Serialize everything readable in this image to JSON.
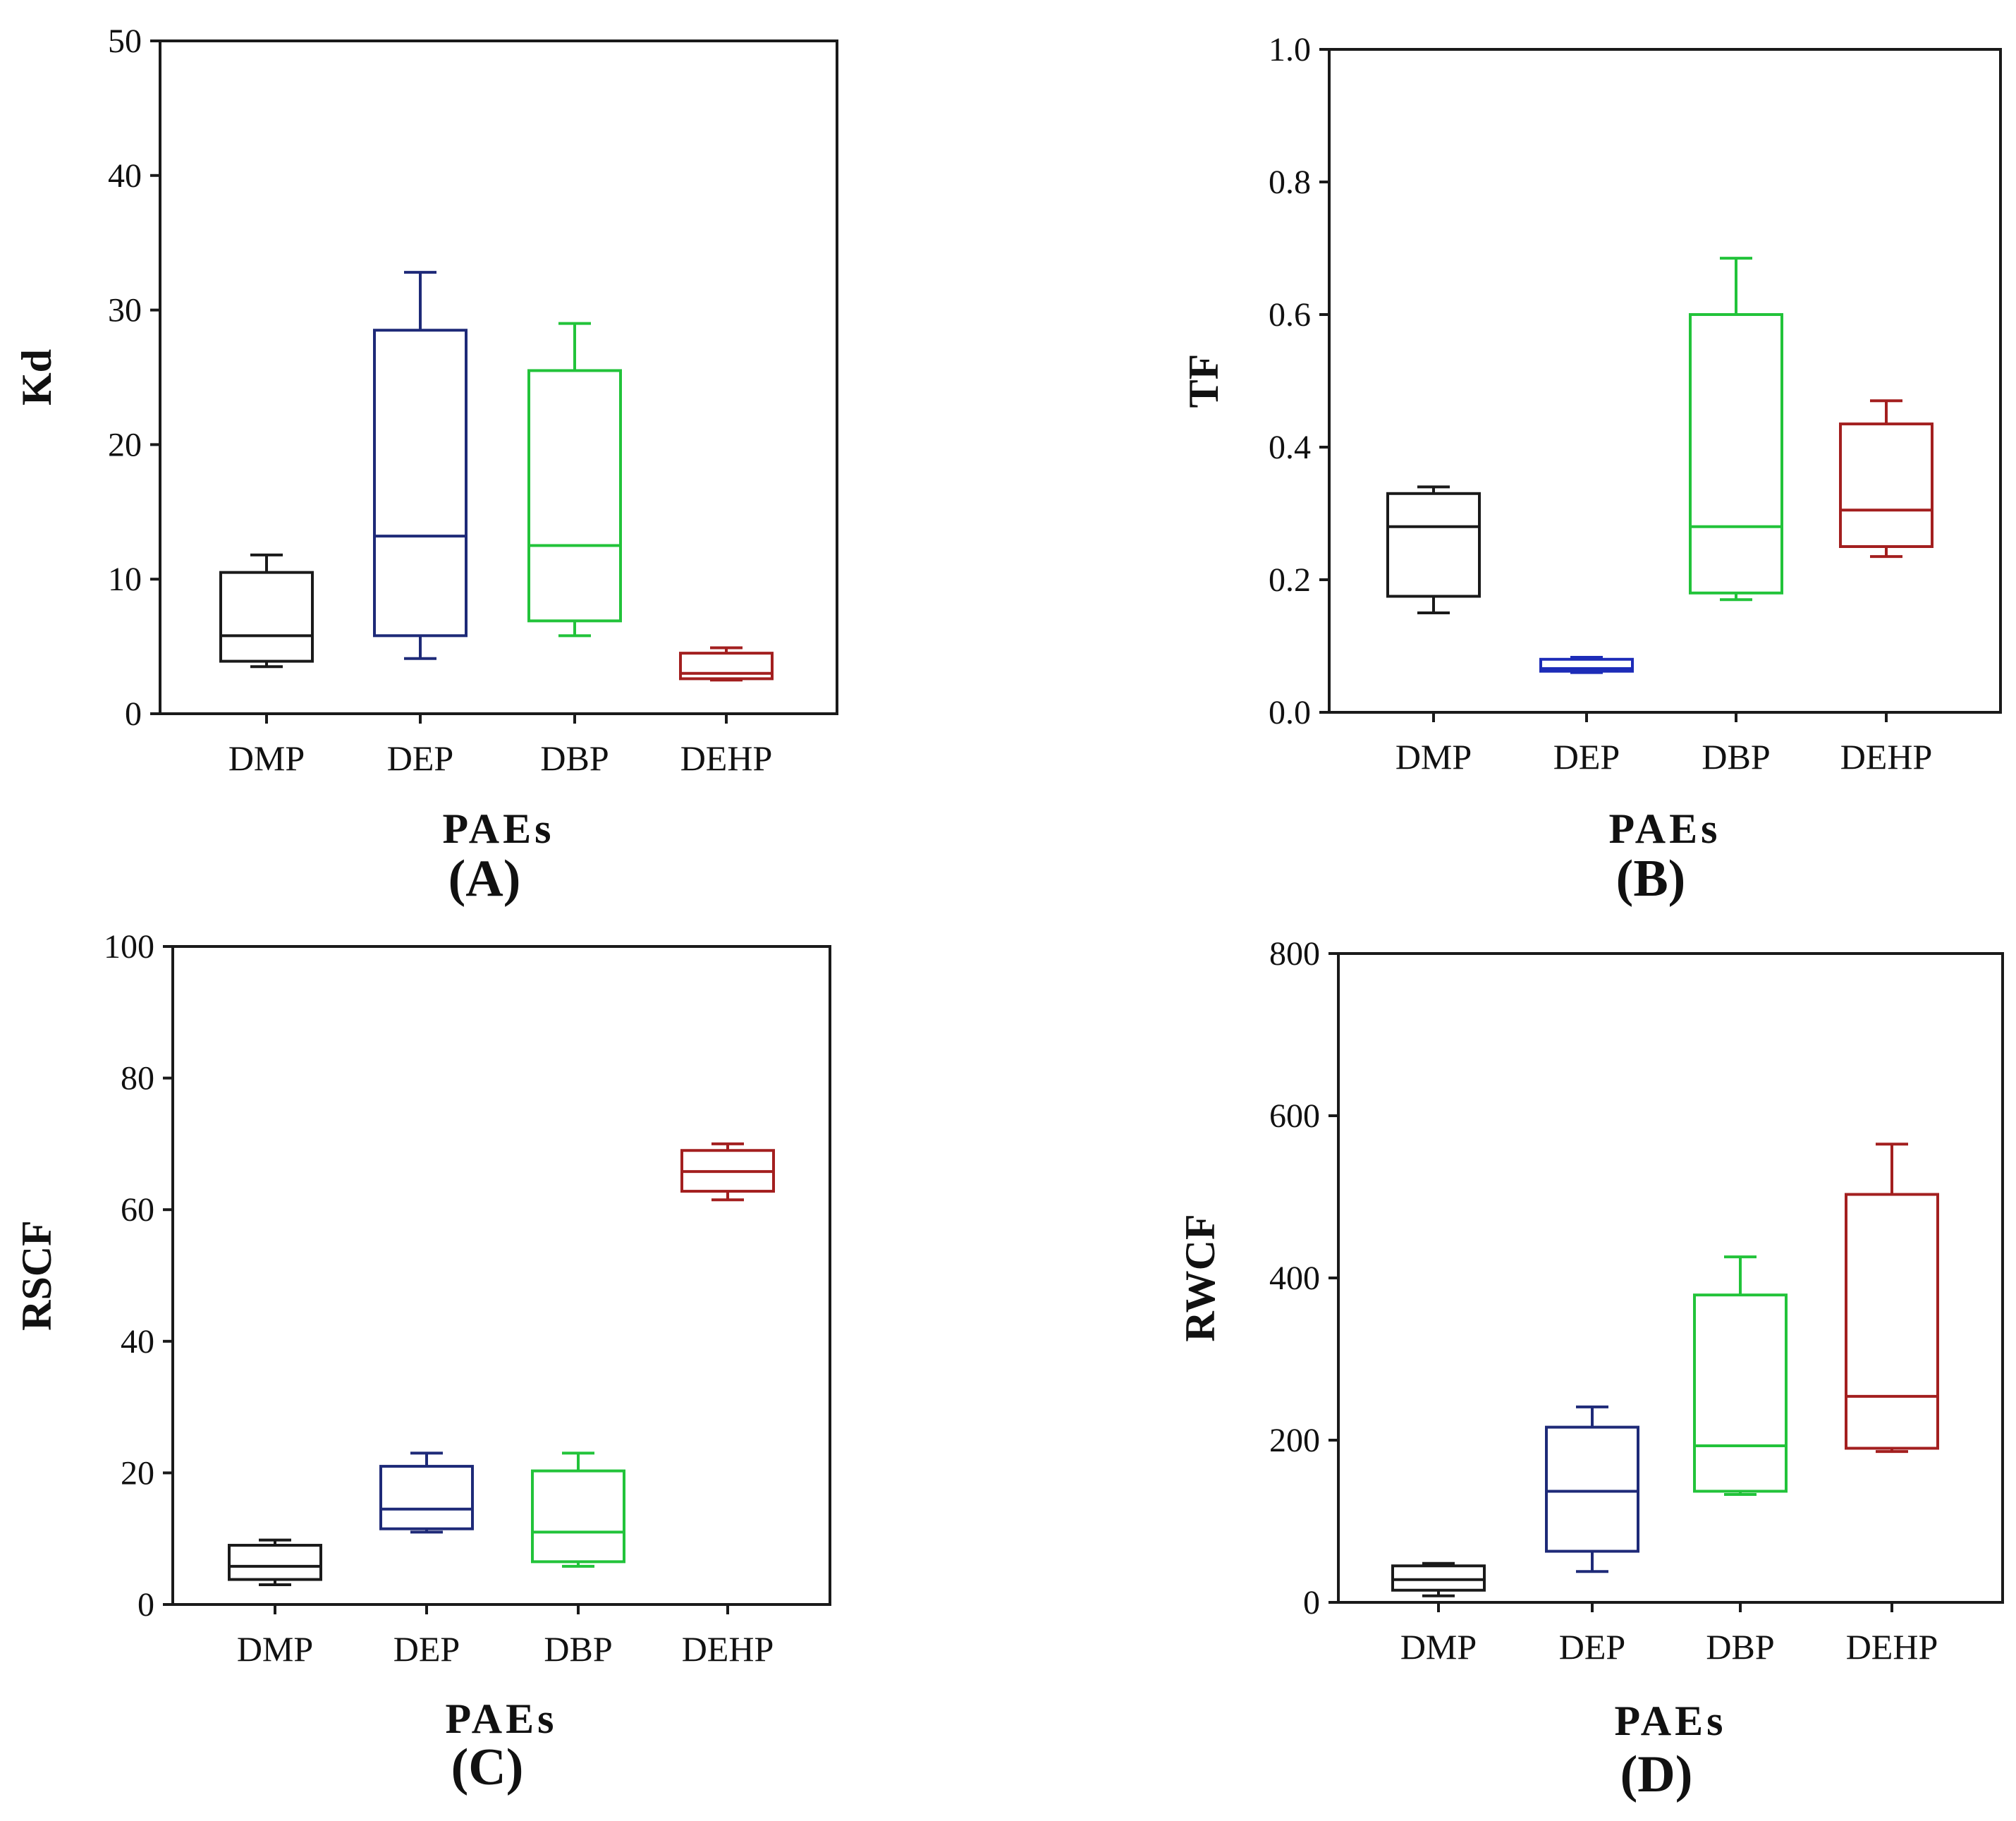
{
  "chart_data": [
    {
      "type": "box",
      "panel_label": "(A)",
      "xlabel": "PAEs",
      "ylabel": "Kd",
      "ylim": [
        0,
        50
      ],
      "yticks": [
        "0",
        "10",
        "20",
        "30",
        "40",
        "50"
      ],
      "categories": [
        "DMP",
        "DEP",
        "DBP",
        "DEHP"
      ],
      "boxes": [
        {
          "name": "DMP",
          "color": "#1a1a1a",
          "min": 3.5,
          "q1": 3.9,
          "median": 5.8,
          "q3": 10.5,
          "max": 11.8
        },
        {
          "name": "DEP",
          "color": "#1e2a78",
          "min": 4.1,
          "q1": 5.8,
          "median": 13.2,
          "q3": 28.5,
          "max": 32.8
        },
        {
          "name": "DBP",
          "color": "#22c33a",
          "min": 5.8,
          "q1": 6.9,
          "median": 12.5,
          "q3": 25.5,
          "max": 29.0
        },
        {
          "name": "DEHP",
          "color": "#a31f1f",
          "min": 2.5,
          "q1": 2.6,
          "median": 3.0,
          "q3": 4.5,
          "max": 4.9
        }
      ]
    },
    {
      "type": "box",
      "panel_label": "(B)",
      "xlabel": "PAEs",
      "ylabel": "TF",
      "ylim": [
        0,
        1.0
      ],
      "yticks": [
        "0.0",
        "0.2",
        "0.4",
        "0.6",
        "0.8",
        "1.0"
      ],
      "categories": [
        "DMP",
        "DEP",
        "DBP",
        "DEHP"
      ],
      "boxes": [
        {
          "name": "DMP",
          "color": "#1a1a1a",
          "min": 0.15,
          "q1": 0.175,
          "median": 0.28,
          "q3": 0.33,
          "max": 0.34
        },
        {
          "name": "DEP",
          "color": "#1d2cb8",
          "min": 0.06,
          "q1": 0.062,
          "median": 0.066,
          "q3": 0.08,
          "max": 0.083
        },
        {
          "name": "DBP",
          "color": "#22c33a",
          "min": 0.17,
          "q1": 0.18,
          "median": 0.28,
          "q3": 0.6,
          "max": 0.685
        },
        {
          "name": "DEHP",
          "color": "#a31f1f",
          "min": 0.235,
          "q1": 0.25,
          "median": 0.305,
          "q3": 0.435,
          "max": 0.47
        }
      ]
    },
    {
      "type": "box",
      "panel_label": "(C)",
      "xlabel": "PAEs",
      "ylabel": "RSCF",
      "ylim": [
        0,
        100
      ],
      "yticks": [
        "0",
        "20",
        "40",
        "60",
        "80",
        "100"
      ],
      "categories": [
        "DMP",
        "DEP",
        "DBP",
        "DEHP"
      ],
      "boxes": [
        {
          "name": "DMP",
          "color": "#1a1a1a",
          "min": 3.0,
          "q1": 3.8,
          "median": 5.8,
          "q3": 9.0,
          "max": 9.8
        },
        {
          "name": "DEP",
          "color": "#1e2a78",
          "min": 11.0,
          "q1": 11.5,
          "median": 14.5,
          "q3": 21.0,
          "max": 23.0
        },
        {
          "name": "DBP",
          "color": "#22c33a",
          "min": 5.8,
          "q1": 6.5,
          "median": 11.0,
          "q3": 20.3,
          "max": 23.0
        },
        {
          "name": "DEHP",
          "color": "#a31f1f",
          "min": 61.5,
          "q1": 62.8,
          "median": 65.8,
          "q3": 69.0,
          "max": 70.0
        }
      ]
    },
    {
      "type": "box",
      "panel_label": "(D)",
      "xlabel": "PAEs",
      "ylabel": "RWCF",
      "ylim": [
        0,
        800
      ],
      "yticks": [
        "0",
        "200",
        "400",
        "600",
        "800"
      ],
      "categories": [
        "DMP",
        "DEP",
        "DBP",
        "DEHP"
      ],
      "boxes": [
        {
          "name": "DMP",
          "color": "#1a1a1a",
          "min": 8,
          "q1": 15,
          "median": 28,
          "q3": 45,
          "max": 48
        },
        {
          "name": "DEP",
          "color": "#1e2a78",
          "min": 38,
          "q1": 63,
          "median": 137,
          "q3": 216,
          "max": 241
        },
        {
          "name": "DBP",
          "color": "#22c33a",
          "min": 133,
          "q1": 137,
          "median": 193,
          "q3": 379,
          "max": 426
        },
        {
          "name": "DEHP",
          "color": "#a31f1f",
          "min": 186,
          "q1": 190,
          "median": 254,
          "q3": 503,
          "max": 565
        }
      ]
    }
  ]
}
